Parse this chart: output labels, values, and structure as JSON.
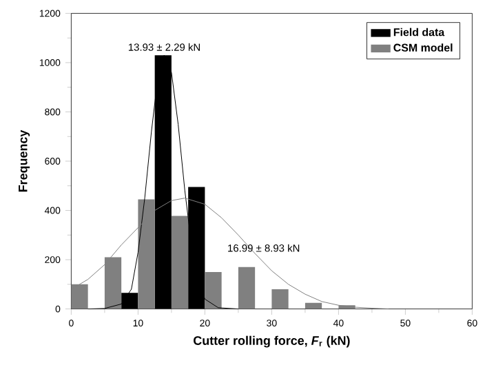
{
  "chart_data": {
    "type": "bar",
    "xlabel": "Cutter rolling force, *F*$_{r}$ (kN)",
    "ylabel": "Frequency",
    "xlim": [
      0,
      60
    ],
    "xticks": [
      0,
      10,
      20,
      30,
      40,
      50,
      60
    ],
    "ylim": [
      0,
      1200
    ],
    "yticks": [
      0,
      200,
      400,
      600,
      800,
      1000,
      1200
    ],
    "legend": "top right",
    "grid": false,
    "series": [
      {
        "name": "Field data",
        "color": "#000000",
        "x": [
          8.75,
          13.75,
          18.75
        ],
        "values": [
          65,
          1030,
          495
        ]
      },
      {
        "name": "CSM model",
        "color": "#808080",
        "x": [
          1.25,
          6.25,
          11.25,
          16.25,
          21.25,
          26.25,
          31.25,
          36.25,
          41.25
        ],
        "values": [
          100,
          210,
          445,
          378,
          150,
          170,
          80,
          25,
          15
        ]
      },
      {
        "type": "line",
        "color": "#000000",
        "x": [
          2.5,
          5,
          7.5,
          9,
          10,
          11,
          12,
          13,
          13.9,
          15,
          16,
          17,
          18,
          19,
          20,
          22,
          25
        ],
        "values": [
          0,
          2,
          20,
          80,
          230,
          450,
          720,
          950,
          1030,
          960,
          750,
          480,
          260,
          120,
          40,
          5,
          0
        ]
      },
      {
        "type": "line",
        "color": "#808080",
        "x": [
          0,
          2.5,
          5,
          7.5,
          10,
          12.5,
          15,
          17,
          20,
          22.5,
          25,
          27.5,
          30,
          32.5,
          35,
          37.5,
          40,
          42.5,
          45,
          47.5
        ],
        "values": [
          80,
          120,
          180,
          260,
          330,
          400,
          440,
          450,
          425,
          370,
          300,
          225,
          155,
          100,
          60,
          30,
          15,
          7,
          3,
          0
        ]
      }
    ],
    "annotations": [
      {
        "text": "13.93 ± 2.29 kN",
        "x": 13.93,
        "y": 1030
      },
      {
        "text": "16.99 ± 8.93 kN",
        "x": 22.5,
        "y": 370
      }
    ]
  }
}
